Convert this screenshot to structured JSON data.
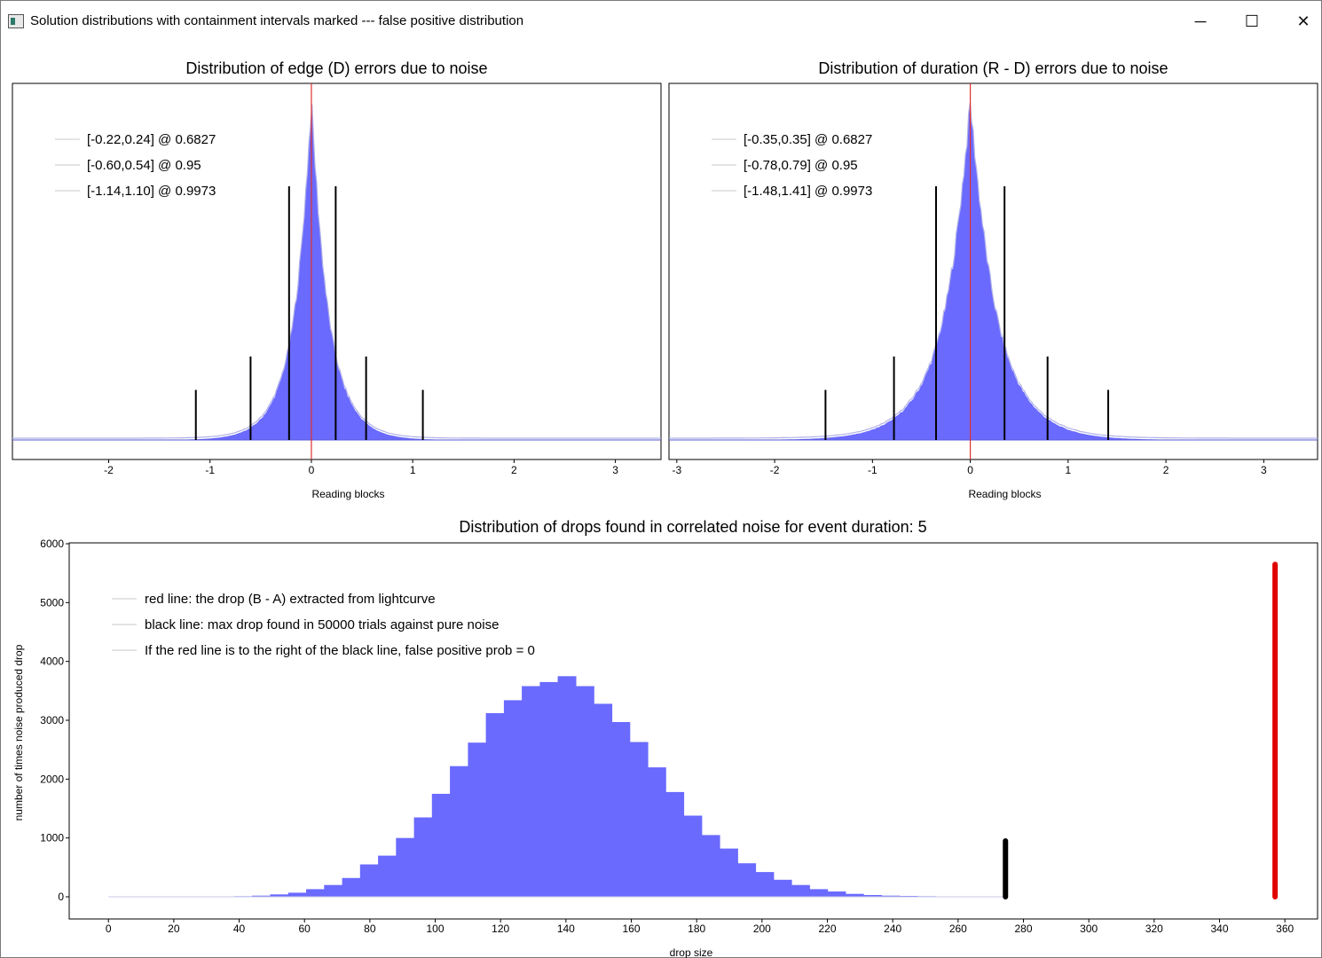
{
  "window": {
    "title": "Solution distributions with containment intervals marked --- false positive distribution",
    "buttons": {
      "minimize": "─",
      "maximize": "☐",
      "close": "✕"
    }
  },
  "colors": {
    "bars": "#6a6aff",
    "outline": "#b0b0e8",
    "red": "#e00000",
    "black": "#000000",
    "frame": "#000000"
  },
  "chart_data": [
    {
      "type": "bar",
      "title": "Distribution of edge (D) errors due to noise",
      "xlabel": "Reading blocks",
      "ylabel": "",
      "xlim": [
        -2.95,
        3.45
      ],
      "xticks": [
        -2,
        -1,
        0,
        1,
        2,
        3
      ],
      "distribution": {
        "center": 0.0,
        "scale": 0.19,
        "shape": "laplace-like",
        "peak_relative": 1.0
      },
      "marker_line_x": 0,
      "legend": [
        "[-0.22,0.24] @ 0.6827",
        "[-0.60,0.54] @ 0.95",
        "[-1.14,1.10] @ 0.9973"
      ],
      "intervals": [
        {
          "low": -0.22,
          "high": 0.24,
          "prob": 0.6827,
          "height": 0.76
        },
        {
          "low": -0.6,
          "high": 0.54,
          "prob": 0.95,
          "height": 0.25
        },
        {
          "low": -1.14,
          "high": 1.1,
          "prob": 0.9973,
          "height": 0.15
        }
      ]
    },
    {
      "type": "bar",
      "title": "Distribution of duration (R - D) errors due to noise",
      "xlabel": "Reading blocks",
      "ylabel": "",
      "xlim": [
        -3.08,
        3.55
      ],
      "xticks": [
        -3,
        -2,
        -1,
        0,
        1,
        2,
        3
      ],
      "distribution": {
        "center": 0.0,
        "scale": 0.3,
        "shape": "laplace-like",
        "peak_relative": 1.0
      },
      "marker_line_x": 0,
      "legend": [
        "[-0.35,0.35] @ 0.6827",
        "[-0.78,0.79] @ 0.95",
        "[-1.48,1.41] @ 0.9973"
      ],
      "intervals": [
        {
          "low": -0.35,
          "high": 0.35,
          "prob": 0.6827,
          "height": 0.76
        },
        {
          "low": -0.78,
          "high": 0.79,
          "prob": 0.95,
          "height": 0.25
        },
        {
          "low": -1.48,
          "high": 1.41,
          "prob": 0.9973,
          "height": 0.15
        }
      ]
    },
    {
      "type": "bar",
      "title": "Distribution of drops found in correlated noise for event duration: 5",
      "xlabel": "drop size",
      "ylabel": "number of times noise produced drop",
      "xlim": [
        -12,
        370
      ],
      "ylim": [
        -400,
        6000
      ],
      "xticks": [
        0,
        20,
        40,
        60,
        80,
        100,
        120,
        140,
        160,
        180,
        200,
        220,
        240,
        260,
        280,
        300,
        320,
        340,
        360
      ],
      "yticks": [
        0,
        1000,
        2000,
        3000,
        4000,
        5000,
        6000
      ],
      "bin_start": 0,
      "bin_width": 5.5,
      "counts": [
        0,
        0,
        0,
        0,
        0,
        0,
        5,
        10,
        20,
        40,
        70,
        130,
        200,
        320,
        550,
        700,
        1000,
        1350,
        1750,
        2220,
        2620,
        3120,
        3340,
        3580,
        3650,
        3750,
        3580,
        3280,
        2970,
        2630,
        2200,
        1780,
        1380,
        1050,
        820,
        570,
        420,
        290,
        200,
        130,
        90,
        50,
        30,
        20,
        15,
        10,
        5,
        5,
        0,
        0
      ],
      "black_line": {
        "x": 274.5,
        "y_top": 950,
        "label": "black line: max drop found in 50000 trials against pure noise"
      },
      "red_line": {
        "x": 357,
        "y_top": 5650,
        "label": "red line: the drop (B - A) extracted from lightcurve"
      },
      "legend": [
        "red line: the drop (B - A) extracted from lightcurve",
        "black line: max drop found in 50000 trials against pure noise",
        "If the red line is to the right of the black line, false positive prob = 0"
      ]
    }
  ]
}
